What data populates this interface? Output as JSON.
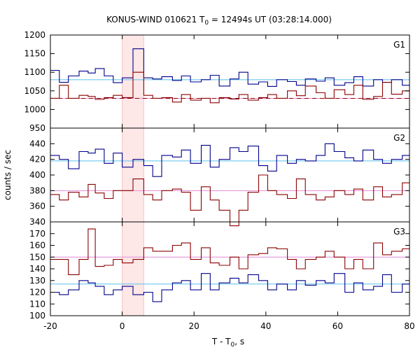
{
  "chart_data": {
    "type": "line",
    "title": "KONUS-WIND 010621 T",
    "title_sub": "0",
    "title_tail": " = 12494s UT (03:28:14.000)",
    "xlabel": "T - T",
    "xlabel_sub": "0",
    "xlabel_tail": ", s",
    "ylabel": "counts / sec",
    "xlim": [
      -20,
      80
    ],
    "x_ticks": [
      "-20",
      "0",
      "20",
      "40",
      "60",
      "80"
    ],
    "x_tick_values": [
      -20,
      0,
      20,
      40,
      60,
      80
    ],
    "highlight_interval": [
      0,
      6
    ],
    "bin_edges": [
      -20,
      -17.5,
      -15,
      -12,
      -9.5,
      -7.5,
      -5,
      -2.5,
      0,
      3,
      6,
      8.5,
      11,
      14,
      16.5,
      19,
      22,
      24.5,
      27,
      30,
      32.5,
      35,
      38,
      40.5,
      43,
      46,
      48.5,
      51,
      54,
      56.5,
      59,
      62,
      64.5,
      67,
      70,
      72.5,
      75,
      78,
      80
    ],
    "panels": [
      {
        "label": "G1",
        "ylim": [
          950,
          1200
        ],
        "y_ticks": [
          950,
          1000,
          1050,
          1100,
          1150,
          1200
        ],
        "y_tick_labels": [
          "950",
          "1000",
          "1050",
          "1100",
          "1150",
          "1200"
        ],
        "bg_blue": 1080,
        "bg_red": 1030,
        "bg_red_dashed": true,
        "series": [
          {
            "color": "#00008b",
            "values": [
              1105,
              1073,
              1090,
              1103,
              1098,
              1110,
              1090,
              1072,
              1085,
              1163,
              1085,
              1082,
              1088,
              1078,
              1090,
              1074,
              1080,
              1092,
              1063,
              1082,
              1100,
              1068,
              1074,
              1062,
              1080,
              1075,
              1065,
              1082,
              1076,
              1085,
              1065,
              1072,
              1088,
              1063,
              1080,
              1073,
              1080,
              1065
            ]
          },
          {
            "color": "#8b0000",
            "values": [
              1030,
              1065,
              1030,
              1038,
              1035,
              1027,
              1032,
              1038,
              1032,
              1100,
              1038,
              1030,
              1032,
              1020,
              1040,
              1025,
              1030,
              1018,
              1032,
              1028,
              1040,
              1025,
              1032,
              1040,
              1030,
              1050,
              1037,
              1063,
              1045,
              1030,
              1053,
              1040,
              1065,
              1027,
              1035,
              1073,
              1041,
              1050
            ]
          }
        ]
      },
      {
        "label": "G2",
        "ylim": [
          340,
          460
        ],
        "y_ticks": [
          340,
          360,
          380,
          400,
          420,
          440
        ],
        "y_tick_labels": [
          "340",
          "360",
          "380",
          "400",
          "420",
          "440"
        ],
        "bg_blue": 418,
        "bg_red": 380,
        "bg_red_dashed": false,
        "series": [
          {
            "color": "#00008b",
            "values": [
              425,
              420,
              408,
              430,
              428,
              433,
              415,
              428,
              410,
              420,
              412,
              398,
              425,
              423,
              432,
              415,
              438,
              410,
              420,
              435,
              430,
              437,
              412,
              405,
              425,
              415,
              420,
              418,
              425,
              440,
              430,
              422,
              418,
              432,
              420,
              415,
              420,
              425
            ]
          },
          {
            "color": "#8b0000",
            "values": [
              375,
              368,
              378,
              372,
              388,
              377,
              370,
              380,
              380,
              395,
              375,
              368,
              380,
              382,
              378,
              355,
              385,
              368,
              355,
              335,
              355,
              378,
              400,
              380,
              375,
              370,
              395,
              375,
              368,
              372,
              380,
              375,
              382,
              368,
              385,
              372,
              375,
              390
            ]
          }
        ]
      },
      {
        "label": "G3",
        "ylim": [
          100,
          180
        ],
        "y_ticks": [
          100,
          110,
          120,
          130,
          140,
          150,
          160,
          170
        ],
        "y_tick_labels": [
          "100",
          "110",
          "120",
          "130",
          "140",
          "150",
          "160",
          "170"
        ],
        "bg_blue": 127,
        "bg_red": 150,
        "bg_red_dashed": false,
        "series": [
          {
            "color": "#00008b",
            "values": [
              120,
              118,
              122,
              130,
              128,
              125,
              118,
              122,
              125,
              118,
              120,
              112,
              122,
              128,
              130,
              122,
              136,
              122,
              128,
              132,
              128,
              135,
              130,
              122,
              127,
              122,
              130,
              126,
              130,
              128,
              136,
              120,
              128,
              122,
              125,
              135,
              120,
              127
            ]
          },
          {
            "color": "#8b0000",
            "values": [
              148,
              148,
              135,
              148,
              174,
              142,
              143,
              148,
              145,
              148,
              158,
              155,
              155,
              160,
              162,
              148,
              158,
              145,
              143,
              150,
              140,
              152,
              153,
              158,
              157,
              148,
              140,
              148,
              150,
              155,
              150,
              140,
              148,
              140,
              162,
              152,
              155,
              157
            ]
          }
        ]
      }
    ]
  }
}
